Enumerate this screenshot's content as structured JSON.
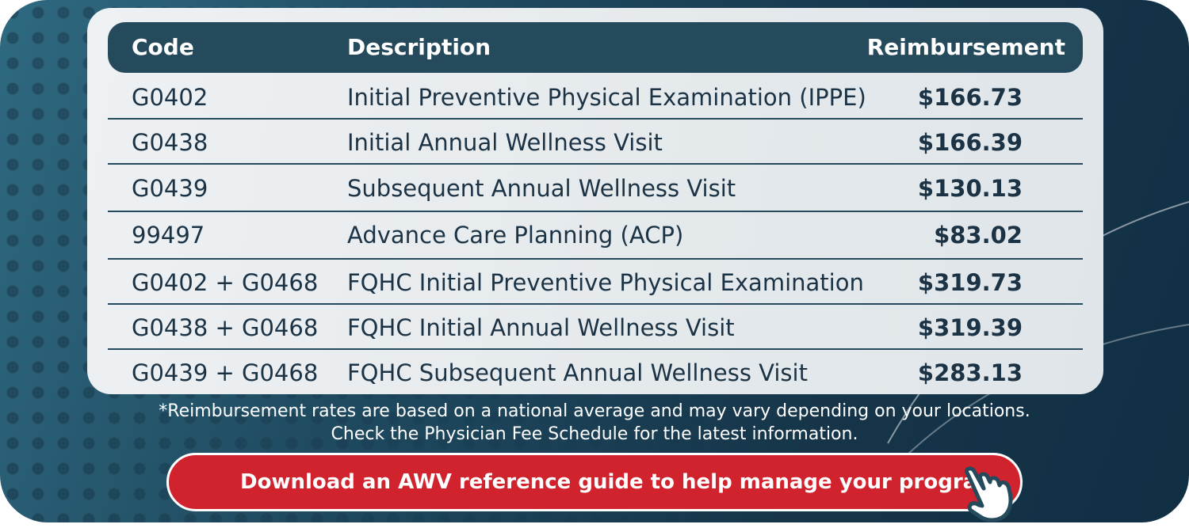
{
  "table": {
    "headers": {
      "code": "Code",
      "description": "Description",
      "reimbursement": "Reimbursement"
    },
    "rows": [
      {
        "code": "G0402",
        "description": "Initial Preventive Physical Examination (IPPE)",
        "reimbursement": "$166.73"
      },
      {
        "code": "G0438",
        "description": "Initial Annual Wellness Visit",
        "reimbursement": "$166.39"
      },
      {
        "code": "G0439",
        "description": "Subsequent Annual Wellness Visit",
        "reimbursement": "$130.13"
      },
      {
        "code": "99497",
        "description": "Advance Care Planning (ACP)",
        "reimbursement": "$83.02"
      },
      {
        "code": "G0402 + G0468",
        "description": "FQHC Initial Preventive Physical Examination",
        "reimbursement": "$319.73"
      },
      {
        "code": "G0438 + G0468",
        "description": "FQHC Initial Annual Wellness Visit",
        "reimbursement": "$319.39"
      },
      {
        "code": "G0439 + G0468",
        "description": "FQHC Subsequent Annual Wellness Visit",
        "reimbursement": "$283.13"
      }
    ]
  },
  "footnote": {
    "line1": "*Reimbursement rates are based on a national average and may vary depending on your locations.",
    "line2": "Check the Physician Fee Schedule for the latest information."
  },
  "cta": {
    "label": "Download an AWV reference guide to help manage your program",
    "icon": "pointing-hand-icon"
  },
  "colors": {
    "header": "#244a5c",
    "button": "#d0232e",
    "text": "#1b3345"
  }
}
